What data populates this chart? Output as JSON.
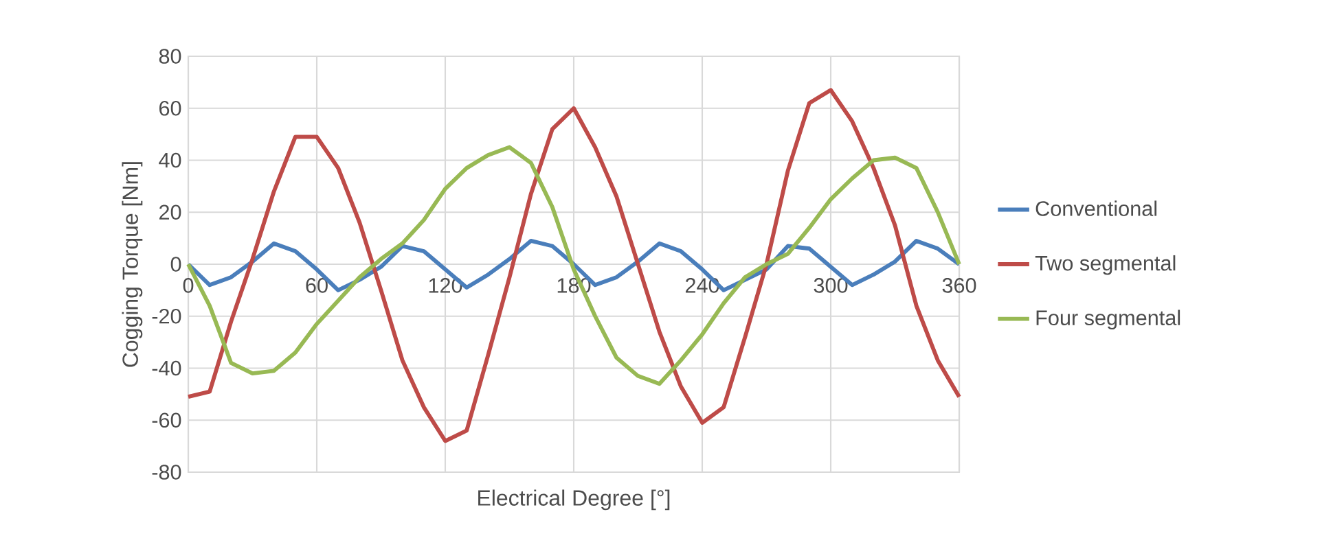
{
  "chart_data": {
    "type": "line",
    "xlabel": "Electrical Degree [°]",
    "ylabel": "Cogging Torque [Nm]",
    "x": [
      0,
      10,
      20,
      30,
      40,
      50,
      60,
      70,
      80,
      90,
      100,
      110,
      120,
      130,
      140,
      150,
      160,
      170,
      180,
      190,
      200,
      210,
      220,
      230,
      240,
      250,
      260,
      270,
      280,
      290,
      300,
      310,
      320,
      330,
      340,
      350,
      360
    ],
    "series": [
      {
        "name": "Conventional",
        "color": "#4a7ebb",
        "values": [
          0,
          -8,
          -5,
          1,
          8,
          5,
          -2,
          -10,
          -6,
          -1,
          7,
          5,
          -2,
          -9,
          -4,
          2,
          9,
          7,
          0,
          -8,
          -5,
          1,
          8,
          5,
          -2,
          -10,
          -6,
          -2,
          7,
          6,
          -1,
          -8,
          -4,
          1,
          9,
          6,
          0
        ]
      },
      {
        "name": "Two segmental",
        "color": "#be4b48",
        "values": [
          -51,
          -49,
          -22,
          2,
          28,
          49,
          49,
          37,
          16,
          -10,
          -37,
          -55,
          -68,
          -64,
          -35,
          -5,
          27,
          52,
          60,
          45,
          26,
          0,
          -26,
          -47,
          -61,
          -55,
          -28,
          0,
          36,
          62,
          67,
          55,
          37,
          15,
          -16,
          -37,
          -51
        ]
      },
      {
        "name": "Four segmental",
        "color": "#98b954",
        "values": [
          0,
          -16,
          -38,
          -42,
          -41,
          -34,
          -23,
          -14,
          -5,
          2,
          8,
          17,
          29,
          37,
          42,
          45,
          39,
          22,
          -2,
          -20,
          -36,
          -43,
          -46,
          -37,
          -27,
          -15,
          -5,
          0,
          4,
          14,
          25,
          33,
          40,
          41,
          37,
          20,
          0
        ]
      }
    ],
    "xlim": [
      0,
      360
    ],
    "xticks": [
      0,
      60,
      120,
      180,
      240,
      300,
      360
    ],
    "ylim": [
      -80,
      80
    ],
    "yticks": [
      -80,
      -60,
      -40,
      -20,
      0,
      20,
      40,
      60,
      80
    ],
    "grid": true,
    "legend": "right"
  }
}
